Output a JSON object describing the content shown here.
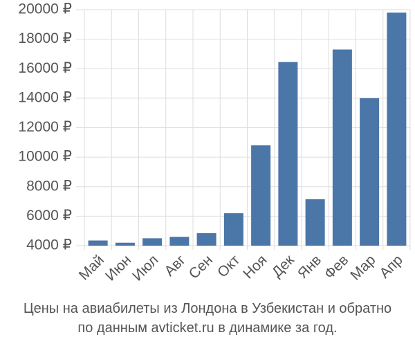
{
  "chart_data": {
    "type": "bar",
    "categories": [
      "Май",
      "Июн",
      "Июл",
      "Авг",
      "Сен",
      "Окт",
      "Ноя",
      "Дек",
      "Янв",
      "Фев",
      "Мар",
      "Апр"
    ],
    "values": [
      4350,
      4200,
      4500,
      4600,
      4850,
      6200,
      10800,
      16450,
      7150,
      17300,
      14000,
      19800
    ],
    "ylim": [
      4000,
      20000
    ],
    "y_ticks": [
      4000,
      6000,
      8000,
      10000,
      12000,
      14000,
      16000,
      18000,
      20000
    ],
    "y_tick_labels": [
      "4000 ₽",
      "6000 ₽",
      "8000 ₽",
      "10000 ₽",
      "12000 ₽",
      "14000 ₽",
      "16000 ₽",
      "18000 ₽",
      "20000 ₽"
    ],
    "grid": true,
    "bar_color": "#4a76a8",
    "grid_color": "#dddddd"
  },
  "caption": {
    "line1": "Цены на авиабилеты из Лондона в Узбекистан и обратно",
    "line2": "по данным avticket.ru в динамике за год."
  }
}
